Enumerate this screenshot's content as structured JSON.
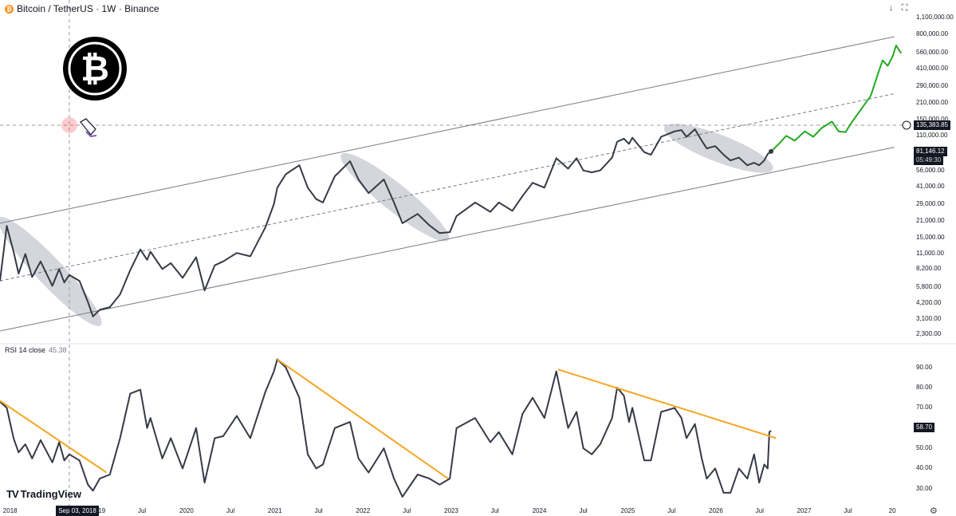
{
  "header": {
    "symbol": "Bitcoin / TetherUS · 1W · Binance",
    "icon": "bitcoin-icon",
    "buttons": [
      "download-icon",
      "fullscreen-icon"
    ]
  },
  "chart_data": [
    {
      "type": "line",
      "title": "Bitcoin / TetherUS · 1W · Binance",
      "scale": "log",
      "y_ticks": [
        "1,100,000.00",
        "800,000.00",
        "560,000.00",
        "410,000.00",
        "290,000.00",
        "210,000.00",
        "150,000.00",
        "110,000.00",
        "56,000.00",
        "41,000.00",
        "29,000.00",
        "21,000.00",
        "15,000.00",
        "11,000.00",
        "8,200.00",
        "5,800.00",
        "4,200.00",
        "3,100.00",
        "2,300.00"
      ],
      "x_ticks": [
        "2018",
        "2019",
        "Jul",
        "2020",
        "Jul",
        "2021",
        "Jul",
        "2022",
        "Jul",
        "2023",
        "Jul",
        "2024",
        "Jul",
        "2025",
        "Jul",
        "2026",
        "Jul",
        "2027",
        "Jul",
        "20"
      ],
      "x_tick_dates": [
        "2018-01-01",
        "2019-01-01",
        "2019-07-01",
        "2020-01-01",
        "2020-07-01",
        "2021-01-01",
        "2021-07-01",
        "2022-01-01",
        "2022-07-01",
        "2023-01-01",
        "2023-07-01",
        "2024-01-01",
        "2024-07-01",
        "2025-01-01",
        "2025-07-01",
        "2026-01-01",
        "2026-07-01",
        "2027-01-01",
        "2027-07-01",
        "2028-01-01"
      ],
      "ylim": [
        2000,
        1250000
      ],
      "xlim": [
        "2017-11-20",
        "2028-03-10"
      ],
      "series": [
        {
          "color": "#363a45",
          "points": [
            [
              "2017-11-20",
              6500
            ],
            [
              "2017-12-18",
              19000
            ],
            [
              "2018-01-15",
              11500
            ],
            [
              "2018-02-05",
              7500
            ],
            [
              "2018-03-05",
              11000
            ],
            [
              "2018-04-02",
              7000
            ],
            [
              "2018-05-07",
              9500
            ],
            [
              "2018-06-25",
              5900
            ],
            [
              "2018-07-23",
              8200
            ],
            [
              "2018-08-13",
              6300
            ],
            [
              "2018-09-03",
              7300
            ],
            [
              "2018-10-15",
              6500
            ],
            [
              "2018-11-19",
              4300
            ],
            [
              "2018-12-10",
              3250
            ],
            [
              "2019-01-07",
              3700
            ],
            [
              "2019-02-18",
              3900
            ],
            [
              "2019-04-01",
              5000
            ],
            [
              "2019-05-13",
              8000
            ],
            [
              "2019-06-24",
              12000
            ],
            [
              "2019-07-22",
              9800
            ],
            [
              "2019-08-05",
              11500
            ],
            [
              "2019-09-23",
              8200
            ],
            [
              "2019-10-28",
              9200
            ],
            [
              "2019-12-16",
              6900
            ],
            [
              "2020-02-10",
              10300
            ],
            [
              "2020-03-16",
              5400
            ],
            [
              "2020-04-27",
              8800
            ],
            [
              "2020-06-01",
              9500
            ],
            [
              "2020-07-27",
              11200
            ],
            [
              "2020-09-21",
              10500
            ],
            [
              "2020-11-23",
              18500
            ],
            [
              "2020-12-28",
              29000
            ],
            [
              "2021-01-11",
              40000
            ],
            [
              "2021-02-15",
              52000
            ],
            [
              "2021-04-12",
              62000
            ],
            [
              "2021-05-17",
              40000
            ],
            [
              "2021-06-21",
              32000
            ],
            [
              "2021-07-19",
              30000
            ],
            [
              "2021-09-06",
              50000
            ],
            [
              "2021-11-08",
              67000
            ],
            [
              "2021-12-13",
              47000
            ],
            [
              "2022-01-24",
              36000
            ],
            [
              "2022-03-28",
              47000
            ],
            [
              "2022-05-09",
              30000
            ],
            [
              "2022-06-13",
              20000
            ],
            [
              "2022-08-15",
              24000
            ],
            [
              "2022-10-03",
              19200
            ],
            [
              "2022-11-14",
              16500
            ],
            [
              "2022-12-26",
              16800
            ],
            [
              "2023-01-23",
              23000
            ],
            [
              "2023-04-10",
              30000
            ],
            [
              "2023-06-12",
              25000
            ],
            [
              "2023-07-17",
              30000
            ],
            [
              "2023-09-11",
              25500
            ],
            [
              "2023-10-23",
              34000
            ],
            [
              "2023-12-04",
              44000
            ],
            [
              "2024-01-22",
              40000
            ],
            [
              "2024-03-11",
              71000
            ],
            [
              "2024-04-29",
              58000
            ],
            [
              "2024-06-03",
              71000
            ],
            [
              "2024-07-01",
              56000
            ],
            [
              "2024-08-05",
              54000
            ],
            [
              "2024-09-09",
              56000
            ],
            [
              "2024-10-28",
              72000
            ],
            [
              "2024-11-18",
              98000
            ],
            [
              "2024-12-16",
              104000
            ],
            [
              "2025-01-06",
              94000
            ],
            [
              "2025-01-20",
              106000
            ],
            [
              "2025-03-10",
              80000
            ],
            [
              "2025-04-07",
              76000
            ],
            [
              "2025-05-19",
              108000
            ],
            [
              "2025-07-14",
              120000
            ],
            [
              "2025-08-11",
              123000
            ],
            [
              "2025-09-01",
              108000
            ],
            [
              "2025-10-06",
              125000
            ],
            [
              "2025-11-03",
              100000
            ],
            [
              "2025-11-24",
              86000
            ],
            [
              "2025-12-29",
              90000
            ],
            [
              "2026-02-02",
              76000
            ],
            [
              "2026-03-02",
              68000
            ],
            [
              "2026-04-06",
              72000
            ],
            [
              "2026-05-11",
              62000
            ],
            [
              "2026-06-08",
              65000
            ],
            [
              "2026-06-29",
              62000
            ],
            [
              "2026-07-20",
              68000
            ],
            [
              "2026-08-03",
              77000
            ],
            [
              "2026-08-17",
              81146
            ]
          ]
        },
        {
          "color": "#22ab20",
          "points": [
            [
              "2026-08-17",
              81146
            ],
            [
              "2026-09-14",
              92000
            ],
            [
              "2026-10-19",
              110000
            ],
            [
              "2026-11-23",
              100000
            ],
            [
              "2027-01-04",
              120000
            ],
            [
              "2027-02-08",
              108000
            ],
            [
              "2027-03-15",
              128000
            ],
            [
              "2027-04-26",
              145000
            ],
            [
              "2027-05-24",
              120000
            ],
            [
              "2027-06-21",
              118000
            ],
            [
              "2027-07-19",
              145000
            ],
            [
              "2027-09-06",
              200000
            ],
            [
              "2027-10-04",
              240000
            ],
            [
              "2027-11-01",
              360000
            ],
            [
              "2027-11-22",
              480000
            ],
            [
              "2027-12-13",
              430000
            ],
            [
              "2028-01-03",
              520000
            ],
            [
              "2028-01-17",
              640000
            ],
            [
              "2028-02-07",
              550000
            ]
          ]
        }
      ],
      "trend_channel": {
        "upper": [
          [
            "2017-11-20",
            20000
          ],
          [
            "2028-01-10",
            760000
          ]
        ],
        "middle": [
          [
            "2017-11-20",
            6500
          ],
          [
            "2028-01-10",
            250000
          ]
        ],
        "lower": [
          [
            "2017-11-20",
            2450
          ],
          [
            "2028-01-10",
            88000
          ]
        ]
      },
      "highlight_ellipses": [
        {
          "from": [
            "2017-12-18",
            19000
          ],
          "to": [
            "2018-12-10",
            3200
          ]
        },
        {
          "from": [
            "2021-11-08",
            67000
          ],
          "to": [
            "2022-11-14",
            16500
          ]
        },
        {
          "from": [
            "2025-07-14",
            120000
          ],
          "to": [
            "2026-07-13",
            62000
          ]
        }
      ],
      "crosshair": {
        "date": "2018-09-03",
        "price": 135383.85
      },
      "price_labels": {
        "crosshair": "135,383.85",
        "last": "81,146.12",
        "countdown": "05:49:30"
      }
    },
    {
      "type": "line",
      "title": "RSI 14 close",
      "value_label": "45.38",
      "y_ticks": [
        "90.00",
        "80.00",
        "70.00",
        "60.00",
        "50.00",
        "40.00",
        "30.00"
      ],
      "ylim": [
        24,
        95
      ],
      "series": [
        {
          "color": "#363a45",
          "points": [
            [
              "2017-11-20",
              73
            ],
            [
              "2017-12-18",
              70
            ],
            [
              "2018-01-15",
              55
            ],
            [
              "2018-02-05",
              48
            ],
            [
              "2018-03-05",
              52
            ],
            [
              "2018-04-02",
              45
            ],
            [
              "2018-05-07",
              54
            ],
            [
              "2018-06-25",
              43
            ],
            [
              "2018-07-23",
              53
            ],
            [
              "2018-08-13",
              44
            ],
            [
              "2018-09-03",
              47
            ],
            [
              "2018-10-15",
              44
            ],
            [
              "2018-11-19",
              32
            ],
            [
              "2018-12-10",
              29
            ],
            [
              "2019-01-07",
              35
            ],
            [
              "2019-02-18",
              37
            ],
            [
              "2019-04-01",
              55
            ],
            [
              "2019-05-13",
              77
            ],
            [
              "2019-06-24",
              79
            ],
            [
              "2019-07-22",
              60
            ],
            [
              "2019-08-05",
              65
            ],
            [
              "2019-09-23",
              45
            ],
            [
              "2019-10-28",
              55
            ],
            [
              "2019-12-16",
              40
            ],
            [
              "2020-02-10",
              60
            ],
            [
              "2020-03-16",
              33
            ],
            [
              "2020-04-27",
              55
            ],
            [
              "2020-06-01",
              56
            ],
            [
              "2020-07-27",
              66
            ],
            [
              "2020-09-21",
              55
            ],
            [
              "2020-11-23",
              78
            ],
            [
              "2020-12-28",
              88
            ],
            [
              "2021-01-11",
              94
            ],
            [
              "2021-02-15",
              90
            ],
            [
              "2021-04-12",
              75
            ],
            [
              "2021-05-17",
              47
            ],
            [
              "2021-06-21",
              40
            ],
            [
              "2021-07-19",
              42
            ],
            [
              "2021-09-06",
              60
            ],
            [
              "2021-11-08",
              63
            ],
            [
              "2021-12-13",
              45
            ],
            [
              "2022-01-24",
              38
            ],
            [
              "2022-03-28",
              50
            ],
            [
              "2022-05-09",
              35
            ],
            [
              "2022-06-13",
              26
            ],
            [
              "2022-08-15",
              37
            ],
            [
              "2022-10-03",
              35
            ],
            [
              "2022-11-14",
              32
            ],
            [
              "2022-12-26",
              35
            ],
            [
              "2023-01-23",
              60
            ],
            [
              "2023-04-10",
              65
            ],
            [
              "2023-06-12",
              53
            ],
            [
              "2023-07-17",
              58
            ],
            [
              "2023-09-11",
              47
            ],
            [
              "2023-10-23",
              67
            ],
            [
              "2023-12-04",
              75
            ],
            [
              "2024-01-22",
              65
            ],
            [
              "2024-03-11",
              88
            ],
            [
              "2024-04-29",
              60
            ],
            [
              "2024-06-03",
              68
            ],
            [
              "2024-07-01",
              50
            ],
            [
              "2024-08-05",
              47
            ],
            [
              "2024-09-09",
              52
            ],
            [
              "2024-10-28",
              65
            ],
            [
              "2024-11-18",
              80
            ],
            [
              "2024-12-16",
              76
            ],
            [
              "2025-01-06",
              63
            ],
            [
              "2025-01-20",
              70
            ],
            [
              "2025-03-10",
              44
            ],
            [
              "2025-04-07",
              44
            ],
            [
              "2025-05-19",
              68
            ],
            [
              "2025-07-14",
              70
            ],
            [
              "2025-08-11",
              65
            ],
            [
              "2025-09-01",
              55
            ],
            [
              "2025-10-06",
              62
            ],
            [
              "2025-11-03",
              45
            ],
            [
              "2025-11-24",
              35
            ],
            [
              "2025-12-29",
              40
            ],
            [
              "2026-02-02",
              28
            ],
            [
              "2026-03-02",
              28
            ],
            [
              "2026-04-06",
              40
            ],
            [
              "2026-05-11",
              35
            ],
            [
              "2026-06-08",
              47
            ],
            [
              "2026-06-29",
              33
            ],
            [
              "2026-07-20",
              42
            ],
            [
              "2026-08-03",
              40
            ],
            [
              "2026-08-10",
              58
            ],
            [
              "2026-08-17",
              58.7
            ]
          ]
        }
      ],
      "trendlines": [
        {
          "color": "#f5a623",
          "points": [
            [
              "2017-11-20",
              73.5
            ],
            [
              "2019-02-04",
              38
            ]
          ]
        },
        {
          "color": "#f5a623",
          "points": [
            [
              "2021-01-11",
              94
            ],
            [
              "2022-12-19",
              35
            ]
          ]
        },
        {
          "color": "#f5a623",
          "points": [
            [
              "2024-03-18",
              89
            ],
            [
              "2026-09-07",
              55
            ]
          ]
        }
      ],
      "price_labels": {
        "last": "58.70"
      }
    }
  ],
  "x_axis": {
    "crosshair_date": "Sep 03, 2018"
  },
  "watermark": {
    "text": "TradingView",
    "mark": "TV"
  },
  "logo": {
    "icon": "bitcoin-logo-icon"
  }
}
